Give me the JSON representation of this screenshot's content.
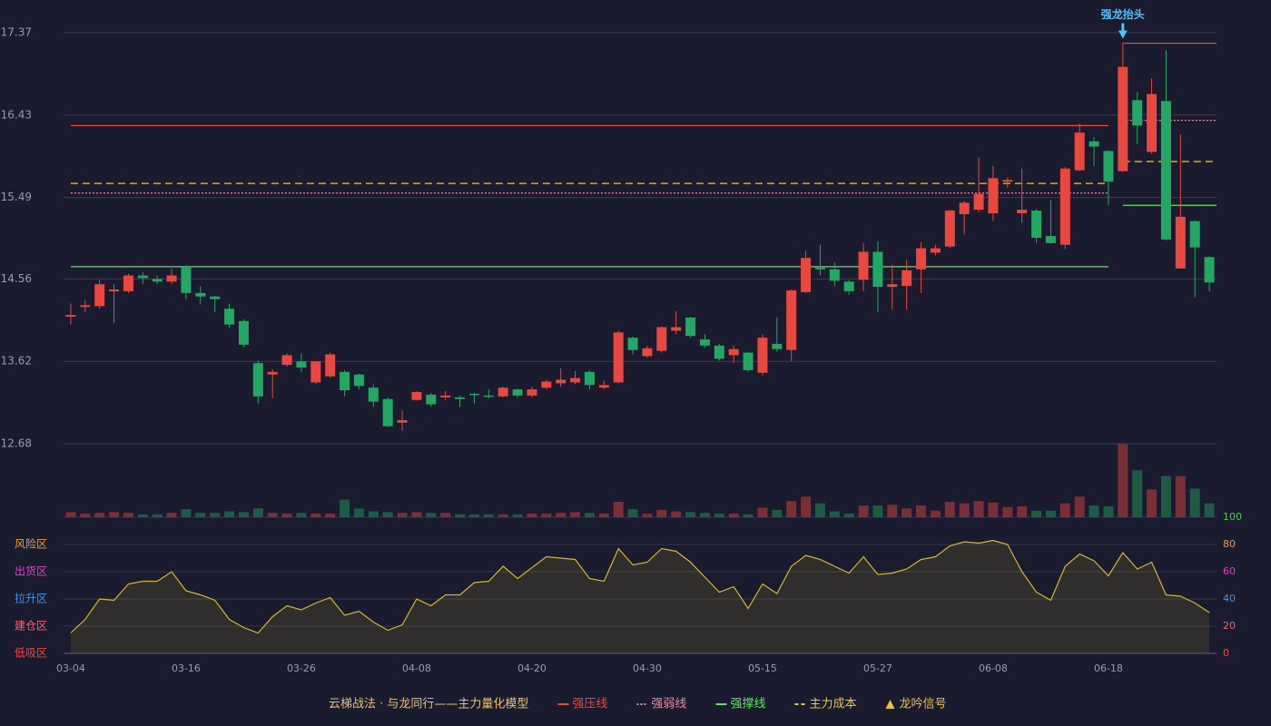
{
  "chart_data": {
    "type": "candlestick",
    "categories": [
      "03-04",
      null,
      null,
      null,
      null,
      null,
      null,
      null,
      "03-16",
      null,
      null,
      null,
      null,
      null,
      null,
      null,
      "03-26",
      null,
      null,
      null,
      null,
      null,
      null,
      null,
      "04-08",
      null,
      null,
      null,
      null,
      null,
      null,
      null,
      "04-20",
      null,
      null,
      null,
      null,
      null,
      null,
      null,
      "04-30",
      null,
      null,
      null,
      null,
      null,
      null,
      null,
      "05-15",
      null,
      null,
      null,
      null,
      null,
      null,
      null,
      "05-27",
      null,
      null,
      null,
      null,
      null,
      null,
      null,
      "06-08",
      null,
      null,
      null,
      null,
      null,
      null,
      null,
      "06-18",
      null,
      null,
      null,
      null,
      null,
      null,
      null
    ],
    "open": [
      14.13,
      14.24,
      14.25,
      14.42,
      14.42,
      14.6,
      14.56,
      14.53,
      14.7,
      14.4,
      14.36,
      14.22,
      14.08,
      13.6,
      13.47,
      13.58,
      13.62,
      13.38,
      13.45,
      13.5,
      13.47,
      13.32,
      13.19,
      12.92,
      13.18,
      13.24,
      13.21,
      13.21,
      13.25,
      13.23,
      13.22,
      13.3,
      13.23,
      13.32,
      13.37,
      13.38,
      13.5,
      13.32,
      13.38,
      13.89,
      13.68,
      13.74,
      13.97,
      14.12,
      13.87,
      13.8,
      13.69,
      13.72,
      13.49,
      13.82,
      13.75,
      14.41,
      14.69,
      14.67,
      14.53,
      14.55,
      14.87,
      14.47,
      14.48,
      14.67,
      14.86,
      14.93,
      15.3,
      15.35,
      15.31,
      15.67,
      15.31,
      15.34,
      15.05,
      14.95,
      15.8,
      16.13,
      16.02,
      15.79,
      16.6,
      16.01,
      16.59,
      14.68,
      15.22,
      14.81
    ],
    "high": [
      14.28,
      14.32,
      14.55,
      14.5,
      14.62,
      14.64,
      14.6,
      14.68,
      14.72,
      14.48,
      14.37,
      14.28,
      14.1,
      13.63,
      13.53,
      13.71,
      13.71,
      13.62,
      13.72,
      13.52,
      13.48,
      13.36,
      13.21,
      13.06,
      13.28,
      13.26,
      13.28,
      13.23,
      13.26,
      13.3,
      13.33,
      13.31,
      13.33,
      13.41,
      13.54,
      13.51,
      13.52,
      13.4,
      13.97,
      13.9,
      13.8,
      14.02,
      14.19,
      14.13,
      13.93,
      13.82,
      13.8,
      13.73,
      13.93,
      14.12,
      14.44,
      14.88,
      14.95,
      14.75,
      14.55,
      14.97,
      14.99,
      14.72,
      14.78,
      14.98,
      14.95,
      15.35,
      15.45,
      15.95,
      15.85,
      15.72,
      15.82,
      15.36,
      15.46,
      15.84,
      16.33,
      16.18,
      16.03,
      17.25,
      16.69,
      16.85,
      17.17,
      16.21,
      15.23,
      14.82
    ],
    "low": [
      14.04,
      14.18,
      14.22,
      14.06,
      14.4,
      14.5,
      14.5,
      14.5,
      14.33,
      14.27,
      14.18,
      14.0,
      13.78,
      13.14,
      13.2,
      13.56,
      13.5,
      13.36,
      13.43,
      13.22,
      13.3,
      13.1,
      12.87,
      12.83,
      13.17,
      13.1,
      13.18,
      13.1,
      13.14,
      13.2,
      13.21,
      13.2,
      13.21,
      13.3,
      13.33,
      13.36,
      13.3,
      13.3,
      13.37,
      13.7,
      13.66,
      13.72,
      13.93,
      13.89,
      13.78,
      13.63,
      13.6,
      13.5,
      13.46,
      13.73,
      13.62,
      14.4,
      14.6,
      14.48,
      14.38,
      14.42,
      14.18,
      14.21,
      14.21,
      14.4,
      14.83,
      14.91,
      15.07,
      15.32,
      15.22,
      15.6,
      15.2,
      14.97,
      14.96,
      14.9,
      15.79,
      15.85,
      15.4,
      15.78,
      16.1,
      15.99,
      15.0,
      14.68,
      14.35,
      14.42
    ],
    "close": [
      14.15,
      14.26,
      14.5,
      14.44,
      14.6,
      14.57,
      14.53,
      14.6,
      14.4,
      14.36,
      14.33,
      14.04,
      13.81,
      13.22,
      13.5,
      13.69,
      13.55,
      13.62,
      13.7,
      13.29,
      13.34,
      13.16,
      12.88,
      12.95,
      13.27,
      13.13,
      13.23,
      13.19,
      13.24,
      13.22,
      13.32,
      13.23,
      13.3,
      13.39,
      13.41,
      13.43,
      13.35,
      13.35,
      13.95,
      13.75,
      13.77,
      14.01,
      14.01,
      13.91,
      13.8,
      13.65,
      13.76,
      13.52,
      13.89,
      13.76,
      14.43,
      14.8,
      14.67,
      14.54,
      14.42,
      14.87,
      14.47,
      14.5,
      14.66,
      14.91,
      14.91,
      15.34,
      15.43,
      15.53,
      15.71,
      15.69,
      15.35,
      15.03,
      14.97,
      15.82,
      16.23,
      16.07,
      15.67,
      16.98,
      16.31,
      16.67,
      15.01,
      15.27,
      14.92,
      14.52
    ],
    "up_color": "#e8483f",
    "down_color": "#22a862",
    "ylim": [
      12.68,
      17.37
    ],
    "yticks": [
      12.68,
      13.62,
      14.56,
      15.49,
      16.43,
      17.37
    ],
    "grid": true,
    "levels": [
      {
        "name": "强压线",
        "color": "#e8483f",
        "dash": "solid",
        "segments": [
          {
            "from": 0,
            "to": 72,
            "value": 16.31
          },
          {
            "from": 73,
            "to": 79,
            "value": 17.25
          }
        ]
      },
      {
        "name": "强弱线",
        "color": "#f08aa0",
        "dash": "dotted",
        "segments": [
          {
            "from": 0,
            "to": 72,
            "value": 15.54
          },
          {
            "from": 73,
            "to": 79,
            "value": 16.37
          }
        ]
      },
      {
        "name": "强撑线",
        "color": "#5ce65c",
        "dash": "solid",
        "segments": [
          {
            "from": 0,
            "to": 72,
            "value": 14.7
          },
          {
            "from": 73,
            "to": 79,
            "value": 15.4
          }
        ]
      },
      {
        "name": "主力成本",
        "color": "#f0c63a",
        "dash": "dashed",
        "segments": [
          {
            "from": 0,
            "to": 72,
            "value": 15.65
          },
          {
            "from": 73,
            "to": 79,
            "value": 15.9
          }
        ]
      }
    ],
    "signals": {
      "name": "龙吟信号",
      "color": "#f0c040",
      "marker_color": "#4fc3f7",
      "points": [
        {
          "index": 73,
          "label": "强龙抬头"
        }
      ]
    },
    "volume": {
      "ylim": [
        0,
        100
      ],
      "up_color": "#7a2e36",
      "down_color": "#1f5a45",
      "values": [
        7,
        5,
        6,
        7,
        6,
        4,
        4,
        6,
        11,
        6,
        6,
        8,
        7,
        12,
        6,
        5,
        6,
        5,
        5,
        24,
        12,
        8,
        7,
        6,
        7,
        6,
        6,
        4,
        4,
        4,
        4,
        4,
        5,
        5,
        6,
        7,
        6,
        5,
        21,
        11,
        5,
        10,
        8,
        7,
        6,
        5,
        5,
        4,
        13,
        10,
        22,
        28,
        19,
        8,
        5,
        16,
        16,
        17,
        12,
        16,
        9,
        21,
        19,
        22,
        20,
        14,
        15,
        9,
        9,
        19,
        28,
        16,
        15,
        100,
        64,
        38,
        56,
        56,
        39,
        19
      ]
    },
    "oscillator": {
      "color": "#d4b82a",
      "ylim": [
        0,
        100
      ],
      "yticks": [
        0,
        20,
        40,
        60,
        80,
        100
      ],
      "tick_colors": [
        "#ff4040",
        "#ff6070",
        "#4a8fe8",
        "#e040d0",
        "#f0a030",
        "#4cd04c"
      ],
      "zones": [
        "低吸区",
        "建仓区",
        "拉升区",
        "出货区",
        "风险区"
      ],
      "values": [
        15,
        25,
        40,
        39,
        51,
        53,
        53,
        60,
        46,
        43,
        39,
        25,
        19,
        15,
        27,
        35,
        32,
        37,
        41,
        28,
        31,
        23,
        17,
        21,
        40,
        35,
        43,
        43,
        52,
        53,
        64,
        55,
        63,
        71,
        70,
        69,
        55,
        53,
        77,
        65,
        67,
        77,
        75,
        67,
        56,
        45,
        49,
        33,
        51,
        44,
        64,
        72,
        69,
        64,
        59,
        71,
        58,
        59,
        62,
        69,
        71,
        79,
        82,
        81,
        83,
        80,
        60,
        45,
        39,
        64,
        73,
        68,
        57,
        74,
        62,
        67,
        43,
        42,
        37,
        30
      ]
    },
    "legend": {
      "title": "云梯战法 · 与龙同行——主力量化模型",
      "title_color": "#e8c070"
    }
  }
}
